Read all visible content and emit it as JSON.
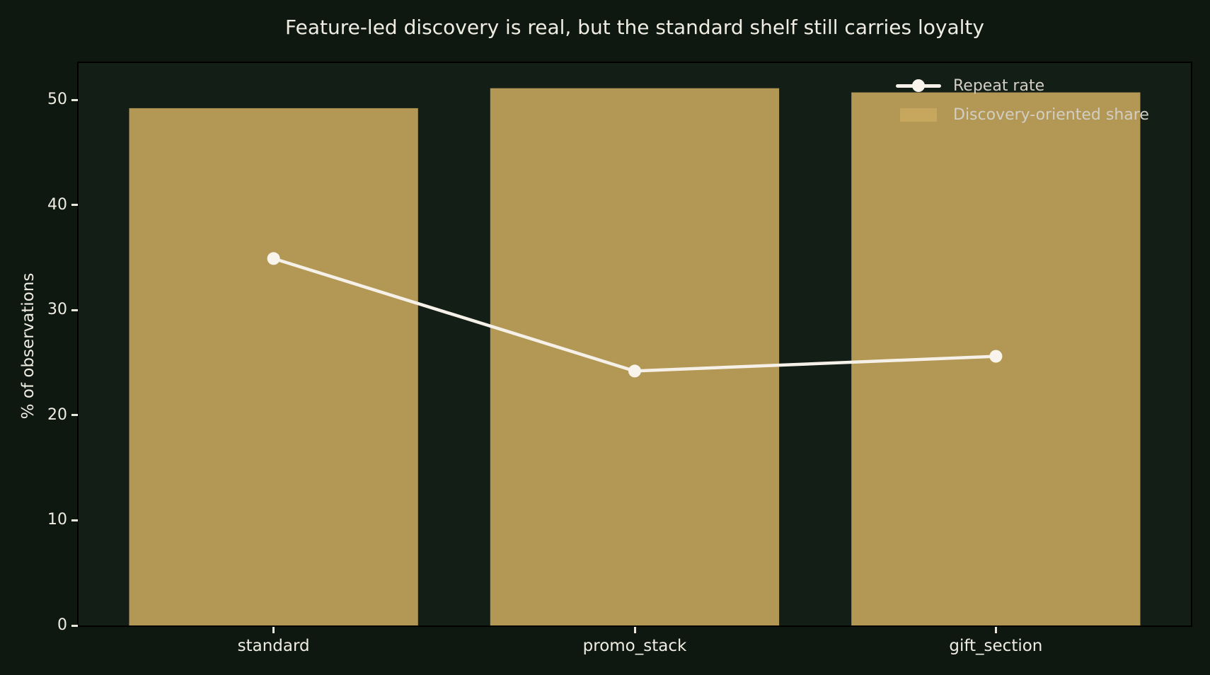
{
  "figure": {
    "background": "#0e1811",
    "axes_background": "#131e16",
    "spine_color": "#000000",
    "tick_color": "#eae7dc",
    "text_color": "#efece2",
    "legend_text_color": "#d2cec4"
  },
  "chart_data": {
    "type": "bar",
    "title": "Feature-led discovery is real, but the standard shelf still carries loyalty",
    "xlabel": "",
    "ylabel": "% of observations",
    "categories": [
      "standard",
      "promo_stack",
      "gift_section"
    ],
    "series": [
      {
        "name": "Discovery-oriented share",
        "type": "bar",
        "color": "#c9a95e",
        "opacity": 0.88,
        "values": [
          49.2,
          51.1,
          50.7
        ]
      },
      {
        "name": "Repeat rate",
        "type": "line",
        "color": "#f6f1e8",
        "marker": "circle",
        "marker_color": "#f8f4ec",
        "values": [
          34.9,
          24.2,
          25.6
        ]
      }
    ],
    "ylim": [
      0,
      53.5
    ],
    "yticks": [
      "0",
      "10",
      "20",
      "30",
      "40",
      "50"
    ],
    "grid": false,
    "legend_position": "upper right"
  }
}
